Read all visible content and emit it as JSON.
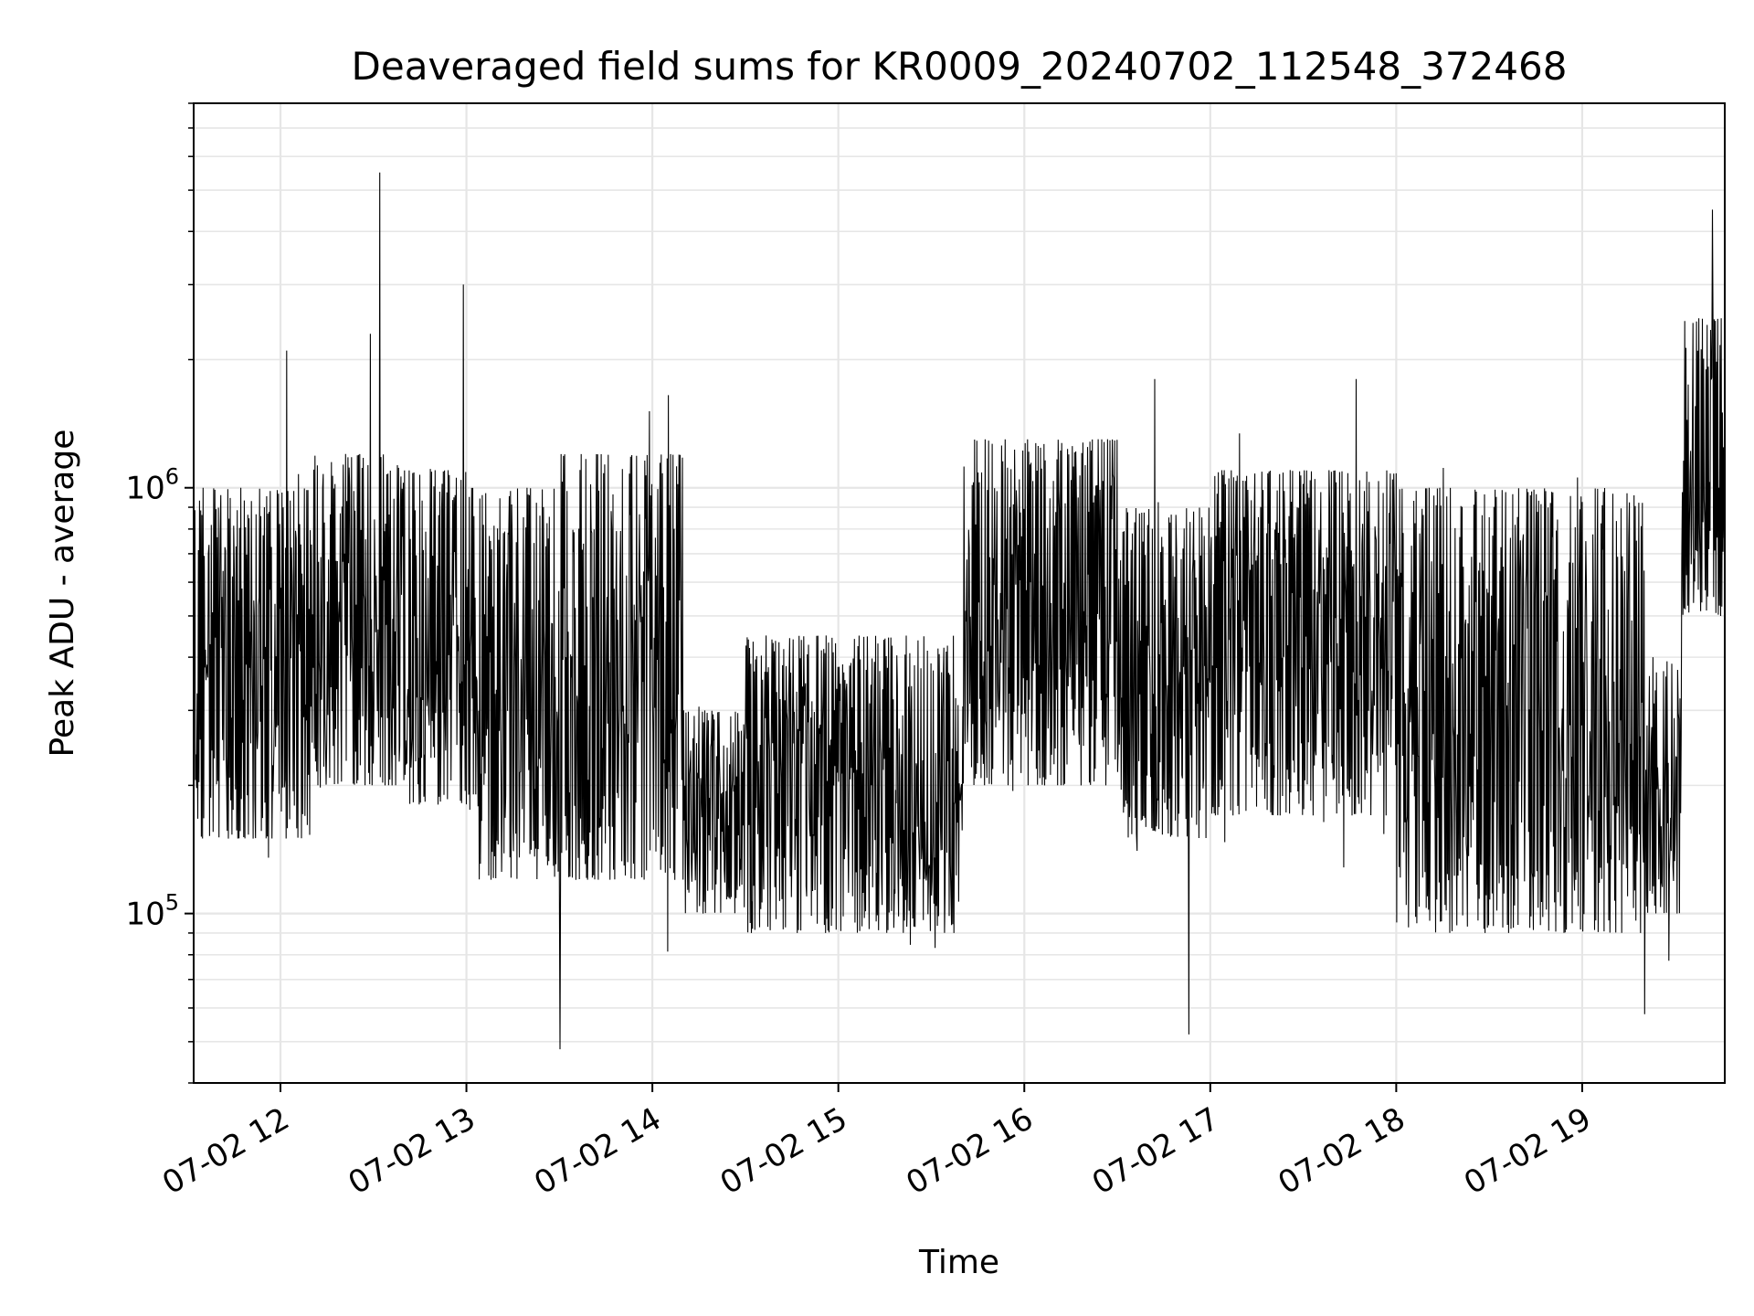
{
  "chart_data": {
    "type": "line",
    "title": "Deaveraged field sums for KR0009_20240702_112548_372468",
    "xlabel": "Time",
    "ylabel": "Peak ADU - average",
    "x_type": "datetime",
    "xlim": [
      "2024-07-02 11:32",
      "2024-07-02 19:46"
    ],
    "x_ticks": [
      {
        "value": "2024-07-02 12:00",
        "label": "07-02 12"
      },
      {
        "value": "2024-07-02 13:00",
        "label": "07-02 13"
      },
      {
        "value": "2024-07-02 14:00",
        "label": "07-02 14"
      },
      {
        "value": "2024-07-02 15:00",
        "label": "07-02 15"
      },
      {
        "value": "2024-07-02 16:00",
        "label": "07-02 16"
      },
      {
        "value": "2024-07-02 17:00",
        "label": "07-02 17"
      },
      {
        "value": "2024-07-02 18:00",
        "label": "07-02 18"
      },
      {
        "value": "2024-07-02 19:00",
        "label": "07-02 19"
      }
    ],
    "y_scale": "log",
    "ylim": [
      40000,
      8000000
    ],
    "y_ticks": [
      {
        "value": 100000,
        "base": "10",
        "exp": "5"
      },
      {
        "value": 1000000,
        "base": "10",
        "exp": "6"
      }
    ],
    "grid": true,
    "series": [
      {
        "color": "#000000",
        "segments": [
          {
            "start": "2024-07-02 11:32",
            "end": "2024-07-02 12:10",
            "low": 150000,
            "high": 1000000
          },
          {
            "start": "2024-07-02 12:10",
            "end": "2024-07-02 12:40",
            "low": 200000,
            "high": 1200000
          },
          {
            "start": "2024-07-02 12:40",
            "end": "2024-07-02 13:00",
            "low": 180000,
            "high": 1100000
          },
          {
            "start": "2024-07-02 13:00",
            "end": "2024-07-02 13:30",
            "low": 120000,
            "high": 1000000
          },
          {
            "start": "2024-07-02 13:30",
            "end": "2024-07-02 14:10",
            "low": 120000,
            "high": 1200000
          },
          {
            "start": "2024-07-02 14:10",
            "end": "2024-07-02 14:30",
            "low": 100000,
            "high": 300000
          },
          {
            "start": "2024-07-02 14:30",
            "end": "2024-07-02 15:40",
            "low": 90000,
            "high": 450000
          },
          {
            "start": "2024-07-02 15:40",
            "end": "2024-07-02 16:30",
            "low": 200000,
            "high": 1300000
          },
          {
            "start": "2024-07-02 16:30",
            "end": "2024-07-02 17:00",
            "low": 150000,
            "high": 900000
          },
          {
            "start": "2024-07-02 17:00",
            "end": "2024-07-02 18:00",
            "low": 170000,
            "high": 1100000
          },
          {
            "start": "2024-07-02 18:00",
            "end": "2024-07-02 19:20",
            "low": 90000,
            "high": 1000000
          },
          {
            "start": "2024-07-02 19:20",
            "end": "2024-07-02 19:32",
            "low": 100000,
            "high": 400000
          },
          {
            "start": "2024-07-02 19:32",
            "end": "2024-07-02 19:46",
            "low": 500000,
            "high": 2500000
          }
        ],
        "spikes": [
          {
            "x": "2024-07-02 12:02",
            "y": 2100000
          },
          {
            "x": "2024-07-02 12:29",
            "y": 2300000
          },
          {
            "x": "2024-07-02 12:32",
            "y": 5500000
          },
          {
            "x": "2024-07-02 12:59",
            "y": 3000000
          },
          {
            "x": "2024-07-02 13:30",
            "y": 48000
          },
          {
            "x": "2024-07-02 14:05",
            "y": 1650000
          },
          {
            "x": "2024-07-02 16:42",
            "y": 1800000
          },
          {
            "x": "2024-07-02 16:53",
            "y": 52000
          },
          {
            "x": "2024-07-02 17:47",
            "y": 1800000
          },
          {
            "x": "2024-07-02 19:20",
            "y": 58000
          },
          {
            "x": "2024-07-02 19:42",
            "y": 4500000
          }
        ]
      }
    ]
  }
}
